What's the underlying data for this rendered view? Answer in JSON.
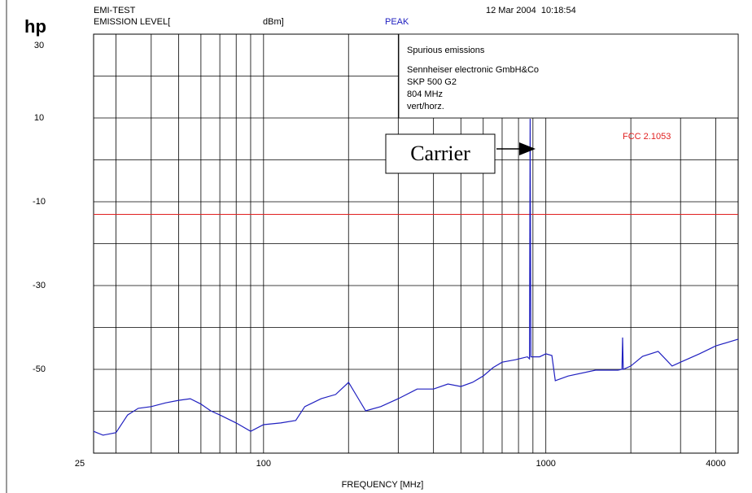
{
  "chart_data": {
    "type": "line",
    "brand": "hp",
    "title": "EMI-TEST",
    "y_label_left": "EMISSION LEVEL[",
    "y_label_unit": "dBm]",
    "detector": "PEAK",
    "timestamp": "12 Mar 2004  10:18:54",
    "x_label": "FREQUENCY [MHz]",
    "info": [
      "Spurious emissions",
      "Sennheiser electronic GmbH&Co",
      "SKP 500 G2",
      "804 MHz",
      "vert/horz."
    ],
    "annotation": "Carrier",
    "limit": {
      "name": "FCC 2.1053",
      "value": -13,
      "color": "#e02020"
    },
    "x_log": true,
    "xlim": [
      25,
      4800
    ],
    "xticks": [
      25,
      100,
      1000,
      4000
    ],
    "minor_xticks": [
      30,
      40,
      50,
      60,
      70,
      80,
      90,
      200,
      300,
      400,
      500,
      600,
      700,
      800,
      900,
      2000,
      3000
    ],
    "ylim": [
      -70,
      30
    ],
    "yticks": [
      30,
      10,
      -10,
      -30,
      -50
    ],
    "minor_yticks": [
      20,
      0,
      -20,
      -40,
      -60
    ],
    "grid": true,
    "series": [
      {
        "color": "#2020c0",
        "x": [
          25,
          27,
          30,
          33,
          36,
          40,
          45,
          50,
          55,
          60,
          65,
          70,
          80,
          90,
          100,
          115,
          130,
          140,
          160,
          180,
          200,
          215,
          230,
          260,
          300,
          350,
          400,
          450,
          500,
          550,
          600,
          650,
          700,
          780,
          860,
          875,
          880,
          885,
          950,
          1000,
          1050,
          1080,
          1200,
          1500,
          1800,
          1860,
          1870,
          1880,
          2000,
          2200,
          2500,
          2800,
          3000,
          3500,
          4000,
          4800
        ],
        "values": [
          -64.8,
          -65.7,
          -65.1,
          -60.9,
          -59.3,
          -58.9,
          -58.0,
          -57.4,
          -57.0,
          -58.3,
          -59.9,
          -60.9,
          -62.8,
          -64.8,
          -63.2,
          -62.8,
          -62.2,
          -58.9,
          -57.0,
          -56.0,
          -53.1,
          -56.6,
          -59.9,
          -58.9,
          -57.0,
          -54.7,
          -54.7,
          -53.5,
          -54.1,
          -53.1,
          -51.6,
          -49.6,
          -48.3,
          -47.7,
          -47.0,
          -47.5,
          9.8,
          -47.0,
          -47.0,
          -46.3,
          -46.7,
          -52.7,
          -51.6,
          -50.2,
          -50.2,
          -50.0,
          -42.4,
          -50.0,
          -49.2,
          -46.9,
          -45.7,
          -49.2,
          -48.3,
          -46.3,
          -44.4,
          -42.8
        ]
      }
    ]
  }
}
